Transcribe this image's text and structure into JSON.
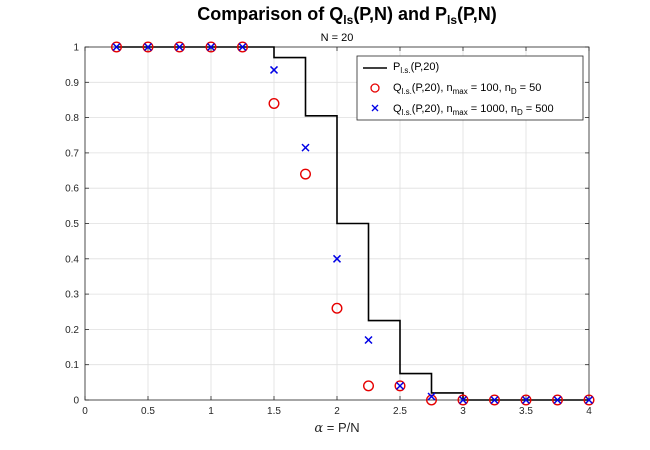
{
  "chart_data": {
    "type": "scatter",
    "title": {
      "prefix": "Comparison of Q",
      "sub1": "ls",
      "mid": "(P,N) and P",
      "sub2": "ls",
      "suffix": "(P,N)"
    },
    "subtitle": "N = 20",
    "xlabel": {
      "symbol": "α",
      "rest": " = P/N"
    },
    "ylabel": "",
    "xlim": [
      0,
      4
    ],
    "ylim": [
      0,
      1
    ],
    "xticks": [
      "0",
      "0.5",
      "1",
      "1.5",
      "2",
      "2.5",
      "3",
      "3.5",
      "4"
    ],
    "yticks": [
      "0",
      "0.1",
      "0.2",
      "0.3",
      "0.4",
      "0.5",
      "0.6",
      "0.7",
      "0.8",
      "0.9",
      "1"
    ],
    "grid": true,
    "legend_position": "top-right",
    "series": [
      {
        "name": {
          "base": "P",
          "sub": "l.s.",
          "rest": "(P,20)"
        },
        "style": "step",
        "color": "#000000",
        "x": [
          0.25,
          1.25,
          1.5,
          1.75,
          2.0,
          2.25,
          2.5,
          2.75,
          3.0,
          4.0
        ],
        "y": [
          1.0,
          1.0,
          0.97,
          0.805,
          0.5,
          0.225,
          0.075,
          0.02,
          0.0,
          0.0
        ]
      },
      {
        "name": {
          "base": "Q",
          "sub": "l.s.",
          "rest": "(P,20), n",
          "sub2": "max",
          "rest2": " = 100, n",
          "sub3": "D",
          "rest3": " = 50"
        },
        "style": "circle",
        "color": "#e60000",
        "x": [
          0.25,
          0.5,
          0.75,
          1.0,
          1.25,
          1.5,
          1.75,
          2.0,
          2.25,
          2.5,
          2.75,
          3.0,
          3.25,
          3.5,
          3.75,
          4.0
        ],
        "y": [
          1.0,
          1.0,
          1.0,
          1.0,
          1.0,
          0.84,
          0.64,
          0.26,
          0.04,
          0.04,
          0.0,
          0.0,
          0.0,
          0.0,
          0.0,
          0.0
        ]
      },
      {
        "name": {
          "base": "Q",
          "sub": "l.s.",
          "rest": "(P,20), n",
          "sub2": "max",
          "rest2": " = 1000, n",
          "sub3": "D",
          "rest3": " = 500"
        },
        "style": "cross",
        "color": "#0000e6",
        "x": [
          0.25,
          0.5,
          0.75,
          1.0,
          1.25,
          1.5,
          1.75,
          2.0,
          2.25,
          2.5,
          2.75,
          3.0,
          3.25,
          3.5,
          3.75,
          4.0
        ],
        "y": [
          1.0,
          1.0,
          1.0,
          1.0,
          1.0,
          0.935,
          0.715,
          0.4,
          0.17,
          0.04,
          0.01,
          0.0,
          0.0,
          0.0,
          0.0,
          0.0
        ]
      }
    ]
  }
}
